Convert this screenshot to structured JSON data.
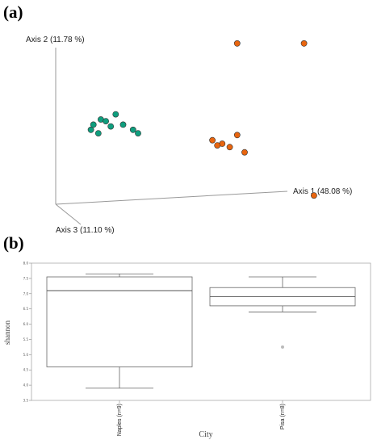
{
  "panels": {
    "a_label": "(a)",
    "b_label": "(b)"
  },
  "chart_data": [
    {
      "type": "scatter",
      "subtype": "3d-pcoa",
      "axes": {
        "x": "Axis 1 (48.08 %)",
        "y": "Axis 2 (11.78 %)",
        "z": "Axis 3 (11.10 %)"
      },
      "series": [
        {
          "color": "#0f9e7e",
          "points": [
            [
              0.09,
              0.44
            ],
            [
              0.1,
              0.47
            ],
            [
              0.13,
              0.5
            ],
            [
              0.15,
              0.49
            ],
            [
              0.17,
              0.46
            ],
            [
              0.19,
              0.53
            ],
            [
              0.22,
              0.47
            ],
            [
              0.26,
              0.44
            ],
            [
              0.28,
              0.42
            ],
            [
              0.12,
              0.42
            ]
          ]
        },
        {
          "color": "#e8650f",
          "points": [
            [
              0.58,
              0.38
            ],
            [
              0.62,
              0.36
            ],
            [
              0.65,
              0.34
            ],
            [
              0.68,
              0.41
            ],
            [
              0.71,
              0.31
            ],
            [
              0.6,
              0.35
            ],
            [
              0.99,
              0.06
            ],
            [
              0.95,
              0.94
            ],
            [
              0.68,
              0.94
            ]
          ]
        }
      ],
      "grid": false
    },
    {
      "type": "box",
      "title": "",
      "xlabel": "City",
      "ylabel": "shannon",
      "ylim": [
        3.5,
        8.0
      ],
      "yticks": [
        "3.5",
        "4.0",
        "4.5",
        "5.0",
        "5.5",
        "6.0",
        "6.5",
        "7.0",
        "7.5",
        "8.0"
      ],
      "categories": [
        "Naples (n=9)",
        "Pisa (n=8)"
      ],
      "boxes": [
        {
          "min": 3.9,
          "q1": 4.6,
          "median": 7.1,
          "q3": 7.55,
          "max": 7.65,
          "outliers": []
        },
        {
          "min": 6.4,
          "q1": 6.6,
          "median": 6.9,
          "q3": 7.2,
          "max": 7.55,
          "outliers": [
            5.25
          ]
        }
      ],
      "grid": false
    }
  ]
}
